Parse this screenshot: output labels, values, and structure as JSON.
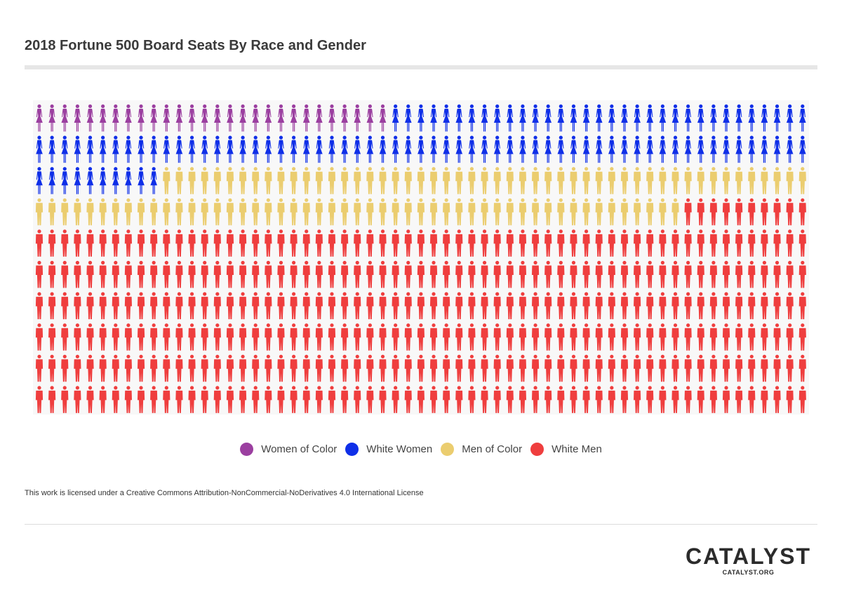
{
  "chart_data": {
    "type": "pictogram",
    "title": "2018 Fortune 500 Board Seats By Race and Gender",
    "grid": {
      "rows": 10,
      "columns": 61
    },
    "series": [
      {
        "name": "Women of Color",
        "figure": "woman",
        "count": 28,
        "color": "#9b3fa0"
      },
      {
        "name": "White Women",
        "figure": "woman",
        "count": 104,
        "color": "#0f2fe8"
      },
      {
        "name": "Men of Color",
        "figure": "man",
        "count": 102,
        "color": "#ebcd6f"
      },
      {
        "name": "White Men",
        "figure": "man",
        "count": 376,
        "color": "#ef3e3e"
      }
    ]
  },
  "license": "This work is licensed under a Creative Commons Attribution-NonCommercial-NoDerivatives 4.0 International License",
  "brand": {
    "name": "CATALYST",
    "url": "CATALYST.ORG"
  }
}
